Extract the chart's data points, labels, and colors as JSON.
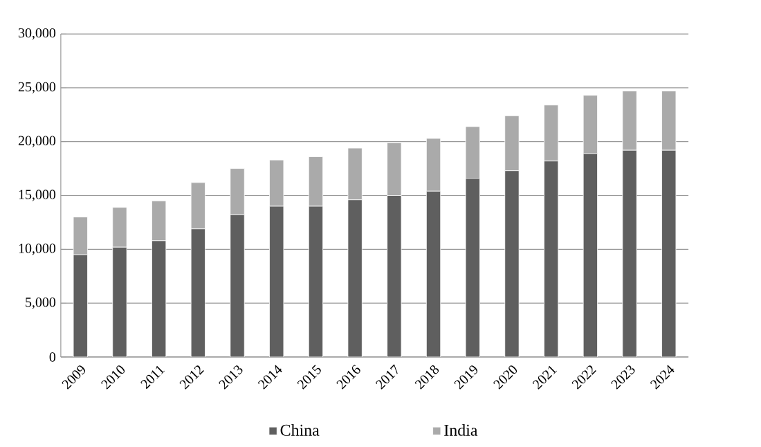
{
  "chart_data": {
    "type": "bar",
    "stacked": true,
    "categories": [
      "2009",
      "2010",
      "2011",
      "2012",
      "2013",
      "2014",
      "2015",
      "2016",
      "2017",
      "2018",
      "2019",
      "2020",
      "2021",
      "2022",
      "2023",
      "2024"
    ],
    "series": [
      {
        "name": "China",
        "color": "#5f5f5f",
        "values": [
          9500,
          10200,
          10800,
          11900,
          13200,
          14000,
          14000,
          14600,
          15000,
          15400,
          16600,
          17300,
          18200,
          18900,
          19200,
          19200
        ]
      },
      {
        "name": "India",
        "color": "#aaaaaa",
        "values": [
          3500,
          3700,
          3700,
          4300,
          4300,
          4300,
          4600,
          4800,
          4900,
          4900,
          4800,
          5100,
          5200,
          5400,
          5500,
          5500
        ]
      }
    ],
    "ylim": [
      0,
      30000
    ],
    "yticks": [
      {
        "value": 0,
        "label": "0"
      },
      {
        "value": 5000,
        "label": "5,000"
      },
      {
        "value": 10000,
        "label": "10,000"
      },
      {
        "value": 15000,
        "label": "15,000"
      },
      {
        "value": 20000,
        "label": "20,000"
      },
      {
        "value": 25000,
        "label": "25,000"
      },
      {
        "value": 30000,
        "label": "30,000"
      }
    ],
    "grid": "y",
    "legend": "bottom"
  }
}
